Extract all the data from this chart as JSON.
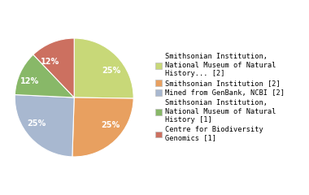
{
  "slices": [
    25,
    25,
    25,
    12,
    12
  ],
  "colors": [
    "#c8d878",
    "#e8a060",
    "#a8b8d0",
    "#88b868",
    "#cc7060"
  ],
  "pct_labels": [
    "25%",
    "25%",
    "25%",
    "12%",
    "12%"
  ],
  "legend_labels": [
    "Smithsonian Institution,\nNational Museum of Natural\nHistory... [2]",
    "Smithsonian Institution [2]",
    "Mined from GenBank, NCBI [2]",
    "Smithsonian Institution,\nNational Museum of Natural\nHistory [1]",
    "Centre for Biodiversity\nGenomics [1]"
  ],
  "startangle": 90,
  "text_color": "white",
  "font_size": 7,
  "legend_fontsize": 6.2,
  "figsize": [
    3.8,
    2.4
  ],
  "dpi": 100
}
